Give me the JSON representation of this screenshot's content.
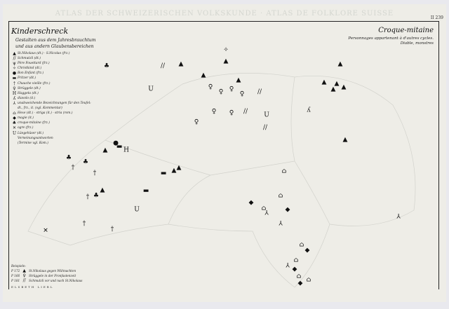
{
  "header": {
    "atlas_title": "ATLAS DER SCHWEIZERISCHEN VOLKSKUNDE · ATLAS DE FOLKLORE SUISSE",
    "map_number": "II 239"
  },
  "left_panel": {
    "title": "Kinderschreck",
    "subtitle_1": "Gestalten aus dem Jahresbrauchtum",
    "subtitle_2": "und aus andern Glaubensbereichen",
    "legend": [
      {
        "icon": "triangle-icon",
        "symbol": "▲",
        "label": "St.Nikolaus (dt.) - S.Nicolao (frz.)"
      },
      {
        "icon": "double-slash-icon",
        "symbol": "//",
        "label": "Schmutzli (dt.)"
      },
      {
        "icon": "pere-fouettard-icon",
        "symbol": "ψ",
        "label": "Père Fouettard (frz.)"
      },
      {
        "icon": "star-cross-icon",
        "symbol": "✧",
        "label": "Christkind (dt.)"
      },
      {
        "icon": "dot-icon",
        "symbol": "●",
        "label": "Bon Enfant (frz.)"
      },
      {
        "icon": "bar-icon",
        "symbol": "▬",
        "label": "Fritzer (dt.)"
      },
      {
        "icon": "cross-icon",
        "symbol": "†",
        "label": "Chauche vieille (frz.)"
      },
      {
        "icon": "person-icon",
        "symbol": "♀",
        "label": "Strüggele (dt.)"
      },
      {
        "icon": "h-icon",
        "symbol": "H",
        "label": "Haggeta (dt.)"
      },
      {
        "icon": "lambda-icon",
        "symbol": "ʎ",
        "label": "diavolo (it.)"
      },
      {
        "icon": "branch-icon",
        "symbol": "⅄",
        "label": "unabweichende Bezeichnungen für den Teufel: dt., frz., it. (vgl. Kommentar)"
      },
      {
        "icon": "house-icon",
        "symbol": "⌂",
        "label": "Hexe (dt.) - striga (it.) - stria (rom.)"
      },
      {
        "icon": "diamond-icon",
        "symbol": "◆",
        "label": "magie (it.)"
      },
      {
        "icon": "tree-icon",
        "symbol": "♣",
        "label": "croque-mitaine (frz.)"
      },
      {
        "icon": "x-icon",
        "symbol": "✕",
        "label": "ogre (frz.)"
      },
      {
        "icon": "u-icon",
        "symbol": "U",
        "label": "Lüegehüser (dt.)"
      },
      {
        "icon": "none-icon",
        "symbol": "",
        "label": "Verneinungsantworten"
      },
      {
        "icon": "none-icon",
        "symbol": "",
        "label": "(Termine vgl. Kom.)"
      }
    ],
    "examples_title": "Beispiele:",
    "examples": [
      {
        "code": "P 172",
        "symbol": "▲",
        "text": "St.Nikolaus gegen Wiihnachten"
      },
      {
        "code": "P 166",
        "symbol": "♀",
        "text": "Strüggele in der Fronfastenzeit"
      },
      {
        "code": "P 181",
        "symbol": "//",
        "text": "Schmutzli vor und nach St.Nikolaus"
      }
    ],
    "author": "ELSBETH LIEBL"
  },
  "right_panel": {
    "title": "Croque-mitaine",
    "subtitle_1": "Personnages appartenant à d'autres cycles.",
    "subtitle_2": "Diable, monstres"
  },
  "colors": {
    "paper": "#eeede7",
    "ink": "#111111",
    "header_text": "#d4d6d0"
  }
}
